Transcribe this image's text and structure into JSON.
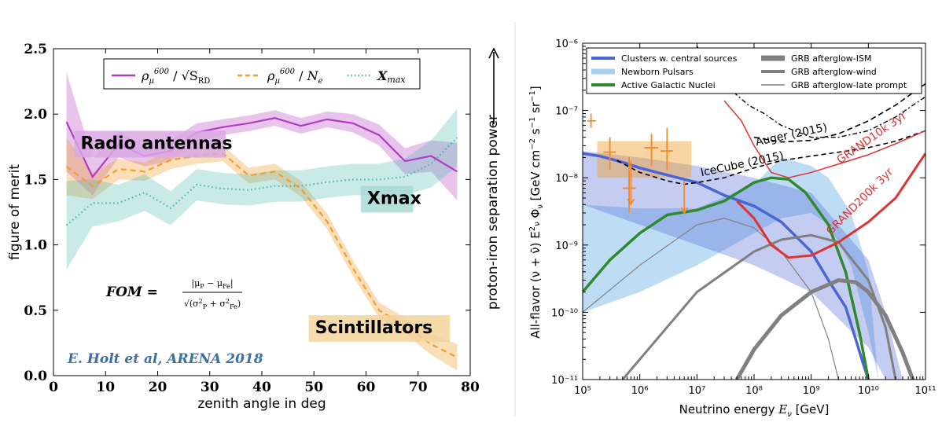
{
  "chart_data": [
    {
      "type": "line",
      "xlabel": "zenith angle in deg",
      "ylabel": "figure of merit",
      "right_label": "proton-iron separation power",
      "xlim": [
        0,
        80
      ],
      "ylim": [
        0.0,
        2.5
      ],
      "xticks": [
        "0",
        "10",
        "20",
        "30",
        "40",
        "50",
        "60",
        "70",
        "80"
      ],
      "yticks": [
        "0.0",
        "0.5",
        "1.0",
        "1.5",
        "2.0",
        "2.5"
      ],
      "legend_position": "top",
      "formula": "FOM = |μP − μFe| / √(σP² + σFe²)",
      "credit": "E. Holt et al, ARENA 2018",
      "colors": {
        "radio": "#b23bc4",
        "scint": "#f0a030",
        "xmax": "#4bb8b0",
        "credit": "#3a6fa8"
      },
      "annotations": [
        {
          "text": "Radio antennas",
          "x": 4,
          "y": 1.77,
          "bg": "#d9a8e3"
        },
        {
          "text": "Xmax",
          "x": 59,
          "y": 1.35,
          "bg": "#a9dbd6"
        },
        {
          "text": "Scintillators",
          "x": 49,
          "y": 0.36,
          "bg": "#f3d39b"
        }
      ],
      "series": [
        {
          "name": "ρμ600 / √S_RD",
          "key": "radio",
          "style": "solid",
          "x": [
            2.5,
            7.5,
            12.5,
            17.5,
            22.5,
            27.5,
            32.5,
            37.5,
            42.5,
            47.5,
            52.5,
            57.5,
            62.5,
            67.5,
            72.5,
            77.5
          ],
          "y": [
            1.94,
            1.52,
            1.77,
            1.68,
            1.72,
            1.86,
            1.9,
            1.93,
            1.97,
            1.91,
            1.96,
            1.93,
            1.84,
            1.64,
            1.68,
            1.56
          ],
          "err": [
            0.38,
            0.14,
            0.1,
            0.08,
            0.08,
            0.07,
            0.06,
            0.06,
            0.06,
            0.06,
            0.06,
            0.07,
            0.08,
            0.1,
            0.12,
            0.22
          ]
        },
        {
          "name": "ρμ600 / Ne",
          "key": "scint",
          "style": "dashed",
          "x": [
            2.5,
            7.5,
            12.5,
            17.5,
            22.5,
            27.5,
            32.5,
            37.5,
            42.5,
            47.5,
            52.5,
            57.5,
            62.5,
            67.5,
            72.5,
            77.5
          ],
          "y": [
            1.6,
            1.45,
            1.58,
            1.56,
            1.65,
            1.68,
            1.7,
            1.53,
            1.56,
            1.43,
            1.18,
            0.82,
            0.5,
            0.38,
            0.24,
            0.14
          ],
          "err": [
            0.22,
            0.1,
            0.08,
            0.07,
            0.07,
            0.06,
            0.06,
            0.06,
            0.06,
            0.06,
            0.06,
            0.06,
            0.06,
            0.06,
            0.08,
            0.1
          ]
        },
        {
          "name": "Xmax",
          "key": "xmax",
          "style": "dotted",
          "x": [
            2.5,
            7.5,
            12.5,
            17.5,
            22.5,
            27.5,
            32.5,
            37.5,
            42.5,
            47.5,
            52.5,
            57.5,
            62.5,
            67.5,
            72.5,
            77.5
          ],
          "y": [
            1.15,
            1.32,
            1.32,
            1.4,
            1.28,
            1.46,
            1.43,
            1.42,
            1.45,
            1.45,
            1.48,
            1.5,
            1.5,
            1.52,
            1.62,
            1.82
          ],
          "err": [
            0.34,
            0.18,
            0.14,
            0.14,
            0.13,
            0.12,
            0.12,
            0.12,
            0.12,
            0.12,
            0.12,
            0.12,
            0.12,
            0.14,
            0.18,
            0.22
          ]
        }
      ]
    },
    {
      "type": "line",
      "log_x": true,
      "log_y": true,
      "xlabel": "Neutrino energy Eν [GeV]",
      "ylabel": "All-flavor (ν+ν̄) Eν²Φν [GeV cm⁻² s⁻¹ sr⁻¹]",
      "xlim": [
        100000.0,
        100000000000.0
      ],
      "ylim": [
        1e-11,
        1e-06
      ],
      "xticks": [
        "10^5",
        "10^6",
        "10^7",
        "10^8",
        "10^9",
        "10^10",
        "10^11"
      ],
      "yticks": [
        "10^-11",
        "10^-10",
        "10^-9",
        "10^-8",
        "10^-7",
        "10^-6"
      ],
      "legend_position": "top",
      "legend": [
        {
          "label": "Clusters w. central sources",
          "color": "#4a66d6",
          "width": 4
        },
        {
          "label": "Newborn Pulsars",
          "color": "#a8d0f0",
          "width": 7
        },
        {
          "label": "Active Galactic Nuclei",
          "color": "#2e8a2e",
          "width": 4
        },
        {
          "label": "GRB afterglow-ISM",
          "color": "#808080",
          "width": 7
        },
        {
          "label": "GRB afterglow-wind",
          "color": "#808080",
          "width": 4
        },
        {
          "label": "GRB afterglow-late prompt",
          "color": "#808080",
          "width": 1.5
        }
      ],
      "labels": [
        {
          "text": "IceCube (2015)",
          "x": 12000000.0,
          "y": 1.05e-08,
          "rot": -12,
          "color": "#000000"
        },
        {
          "text": "Auger (2015)",
          "x": 110000000.0,
          "y": 3e-08,
          "rot": -12,
          "color": "#000000"
        },
        {
          "text": "GRAND10k 3yr",
          "x": 3200000000.0,
          "y": 1.6e-08,
          "rot": -35,
          "color": "#dd3333"
        },
        {
          "text": "GRAND200k 3yr",
          "x": 2200000000.0,
          "y": 1.4e-09,
          "rot": -45,
          "color": "#dd3333"
        }
      ],
      "series": [
        {
          "name": "Clusters w. central sources",
          "color": "#4a66d6",
          "width": 3.5,
          "x": [
            100000.0,
            200000.0,
            500000.0,
            1000000.0,
            3000000.0,
            10000000.0,
            30000000.0,
            100000000.0,
            300000000.0,
            1000000000.0,
            2000000000.0,
            4000000000.0,
            6000000000.0,
            8000000000.0,
            10000000000.0
          ],
          "y": [
            2.3e-08,
            2.1e-08,
            1.7e-08,
            1.4e-08,
            1.1e-08,
            8.5e-09,
            5.5e-09,
            3.8e-09,
            2.2e-09,
            8e-10,
            3e-10,
            1.2e-10,
            4e-11,
            1.8e-11,
            1e-11
          ]
        },
        {
          "name": "Active Galactic Nuclei",
          "color": "#2e8a2e",
          "width": 3.5,
          "x": [
            100000.0,
            300000.0,
            1000000.0,
            3000000.0,
            10000000.0,
            30000000.0,
            100000000.0,
            200000000.0,
            400000000.0,
            800000000.0,
            2000000000.0,
            4000000000.0,
            7000000000.0,
            10000000000.0
          ],
          "y": [
            2e-10,
            6e-10,
            1.5e-09,
            2.8e-09,
            3.3e-09,
            4.5e-09,
            8.5e-09,
            1e-08,
            9.5e-09,
            6e-09,
            2e-09,
            4e-10,
            5e-11,
            1e-11
          ]
        },
        {
          "name": "GRB afterglow-ISM",
          "color": "#808080",
          "width": 5,
          "x": [
            50000000.0,
            100000000.0,
            300000000.0,
            1000000000.0,
            3000000000.0,
            6000000000.0,
            10000000000.0,
            20000000000.0,
            40000000000.0,
            60000000000.0
          ],
          "y": [
            1e-11,
            2.8e-11,
            9e-11,
            2e-10,
            3e-10,
            2.8e-10,
            2e-10,
            9e-11,
            2.5e-11,
            1e-11
          ]
        },
        {
          "name": "GRB afterglow-wind",
          "color": "#808080",
          "width": 3,
          "x": [
            500000.0,
            1000000.0,
            10000000.0,
            100000000.0,
            300000000.0,
            1000000000.0,
            3000000000.0,
            10000000000.0,
            20000000000.0,
            30000000000.0
          ],
          "y": [
            1e-11,
            2e-11,
            2e-10,
            8e-10,
            1.2e-09,
            1.4e-09,
            1.1e-09,
            3e-10,
            6e-11,
            1e-11
          ]
        },
        {
          "name": "GRB afterglow-late prompt",
          "color": "#808080",
          "width": 1.2,
          "x": [
            100000.0,
            1000000.0,
            10000000.0,
            30000000.0,
            100000000.0,
            300000000.0,
            1000000000.0,
            2000000000.0,
            3000000000.0
          ],
          "y": [
            1e-10,
            5e-10,
            2e-09,
            2.5e-09,
            1.8e-09,
            8e-10,
            2e-10,
            4e-11,
            1e-11
          ]
        },
        {
          "name": "IceCube (2015)",
          "color": "#000000",
          "width": 1.6,
          "dash": "6 4",
          "x": [
            400000.0,
            1000000.0,
            3000000.0,
            6000000.0,
            10000000.0,
            30000000.0,
            100000000.0,
            300000000.0,
            1000000000.0,
            3000000000.0,
            10000000000.0,
            30000000000.0,
            100000000000.0
          ],
          "y": [
            1.8e-08,
            1.2e-08,
            9e-09,
            8e-09,
            8.5e-09,
            1e-08,
            1.4e-08,
            1.8e-08,
            2.1e-08,
            2.4e-08,
            2.8e-08,
            3.5e-08,
            5e-08
          ]
        },
        {
          "name": "Auger (2015)",
          "color": "#000000",
          "width": 1.6,
          "dash": "7 4",
          "x": [
            100000000.0,
            300000000.0,
            1000000000.0,
            3000000000.0,
            10000000000.0,
            30000000000.0,
            100000000000.0
          ],
          "y": [
            4e-08,
            3.4e-08,
            3.6e-08,
            4.5e-08,
            7e-08,
            1.2e-07,
            2.5e-07
          ]
        },
        {
          "name": "",
          "color": "#000000",
          "width": 1.4,
          "dash": "2 3 6 3",
          "x": [
            10000000.0,
            20000000.0,
            40000000.0,
            80000000.0,
            150000000.0,
            300000000.0,
            1000000000.0,
            3000000000.0,
            10000000000.0,
            30000000000.0,
            100000000000.0
          ],
          "y": [
            9e-07,
            4e-07,
            2e-07,
            1.2e-07,
            9e-08,
            6e-08,
            4e-08,
            4e-08,
            5e-08,
            8e-08,
            1.6e-07
          ]
        },
        {
          "name": "GRAND10k 3yr",
          "color": "#dd3333",
          "width": 1.5,
          "x": [
            30000000.0,
            60000000.0,
            100000000.0,
            200000000.0,
            400000000.0,
            1000000000.0,
            3000000000.0,
            10000000000.0,
            30000000000.0,
            100000000000.0
          ],
          "y": [
            1.4e-07,
            7e-08,
            3e-08,
            1.2e-08,
            1e-08,
            1.2e-08,
            1.6e-08,
            2.2e-08,
            3.2e-08,
            5e-08
          ]
        },
        {
          "name": "GRAND200k 3yr",
          "color": "#dd3333",
          "width": 3,
          "x": [
            50000000.0,
            100000000.0,
            200000000.0,
            400000000.0,
            1000000000.0,
            3000000000.0,
            10000000000.0,
            30000000000.0,
            100000000000.0
          ],
          "y": [
            4.5e-09,
            2.5e-09,
            1e-09,
            6.5e-10,
            7e-10,
            1.1e-09,
            2.2e-09,
            5e-09,
            2.3e-08
          ]
        }
      ],
      "bands": [
        {
          "name": "Newborn Pulsars",
          "color": "#a8d0f0",
          "opacity": 0.75,
          "x": [
            100000.0,
            1000000.0,
            10000000.0,
            100000000.0,
            300000000.0,
            1000000000.0,
            2000000000.0,
            5000000000.0,
            10000000000.0,
            15000000000.0
          ],
          "lo": [
            1e-10,
            2e-10,
            5e-10,
            1.5e-09,
            2.5e-09,
            3e-09,
            2e-09,
            5e-10,
            5e-11,
            1e-11
          ],
          "hi": [
            4e-09,
            3.5e-09,
            3.5e-09,
            8e-09,
            2e-08,
            1.5e-08,
            1e-08,
            3e-09,
            4e-10,
            1e-11
          ]
        },
        {
          "name": "Clusters band",
          "color": "#5a6ed8",
          "opacity": 0.35,
          "x": [
            100000.0,
            1000000.0,
            10000000.0,
            100000000.0,
            1000000000.0,
            3000000000.0,
            10000000000.0,
            20000000000.0,
            40000000000.0
          ],
          "lo": [
            4e-09,
            2e-09,
            1e-09,
            5e-10,
            2e-10,
            8e-11,
            3e-11,
            1e-11,
            1e-11
          ],
          "hi": [
            2.5e-08,
            2e-08,
            1.5e-08,
            1e-08,
            6e-09,
            2e-09,
            6e-10,
            1e-10,
            1e-11
          ]
        }
      ],
      "boxes": [
        {
          "color": "#f0a030",
          "opacity": 0.45,
          "x0": 180000.0,
          "x1": 8000000.0,
          "y0": 1e-08,
          "y1": 3.5e-08
        }
      ],
      "points": [
        {
          "x": 140000.0,
          "y": 7e-08,
          "dx0": 120000.0,
          "dx1": 170000.0,
          "ylo": 5.5e-08,
          "yhi": 9e-08,
          "color": "#f08a30"
        },
        {
          "x": 300000.0,
          "y": 2.4e-08,
          "dx0": 230000.0,
          "dx1": 380000.0,
          "ylo": 1.3e-08,
          "yhi": 4e-08,
          "color": "#f08a30"
        },
        {
          "x": 650000.0,
          "y": 7e-09,
          "dx0": 500000.0,
          "dx1": 850000.0,
          "ylo": 3e-09,
          "yhi": 2e-08,
          "color": "#f08a30"
        },
        {
          "x": 1600000.0,
          "y": 2.8e-08,
          "dx0": 1200000.0,
          "dx1": 2100000.0,
          "ylo": 1.5e-08,
          "yhi": 4.5e-08,
          "color": "#f08a30"
        },
        {
          "x": 3000000.0,
          "y": 2.5e-08,
          "dx0": 2300000.0,
          "dx1": 3800000.0,
          "ylo": 1.3e-08,
          "yhi": 5.5e-08,
          "color": "#f08a30"
        }
      ],
      "upper_limits": [
        {
          "x": 700000.0,
          "y": 1.8e-08,
          "yto": 4e-09,
          "color": "#f08a30"
        },
        {
          "x": 6000000.0,
          "y": 9e-09,
          "yto": 3e-09,
          "color": "#f08a30"
        }
      ]
    }
  ]
}
